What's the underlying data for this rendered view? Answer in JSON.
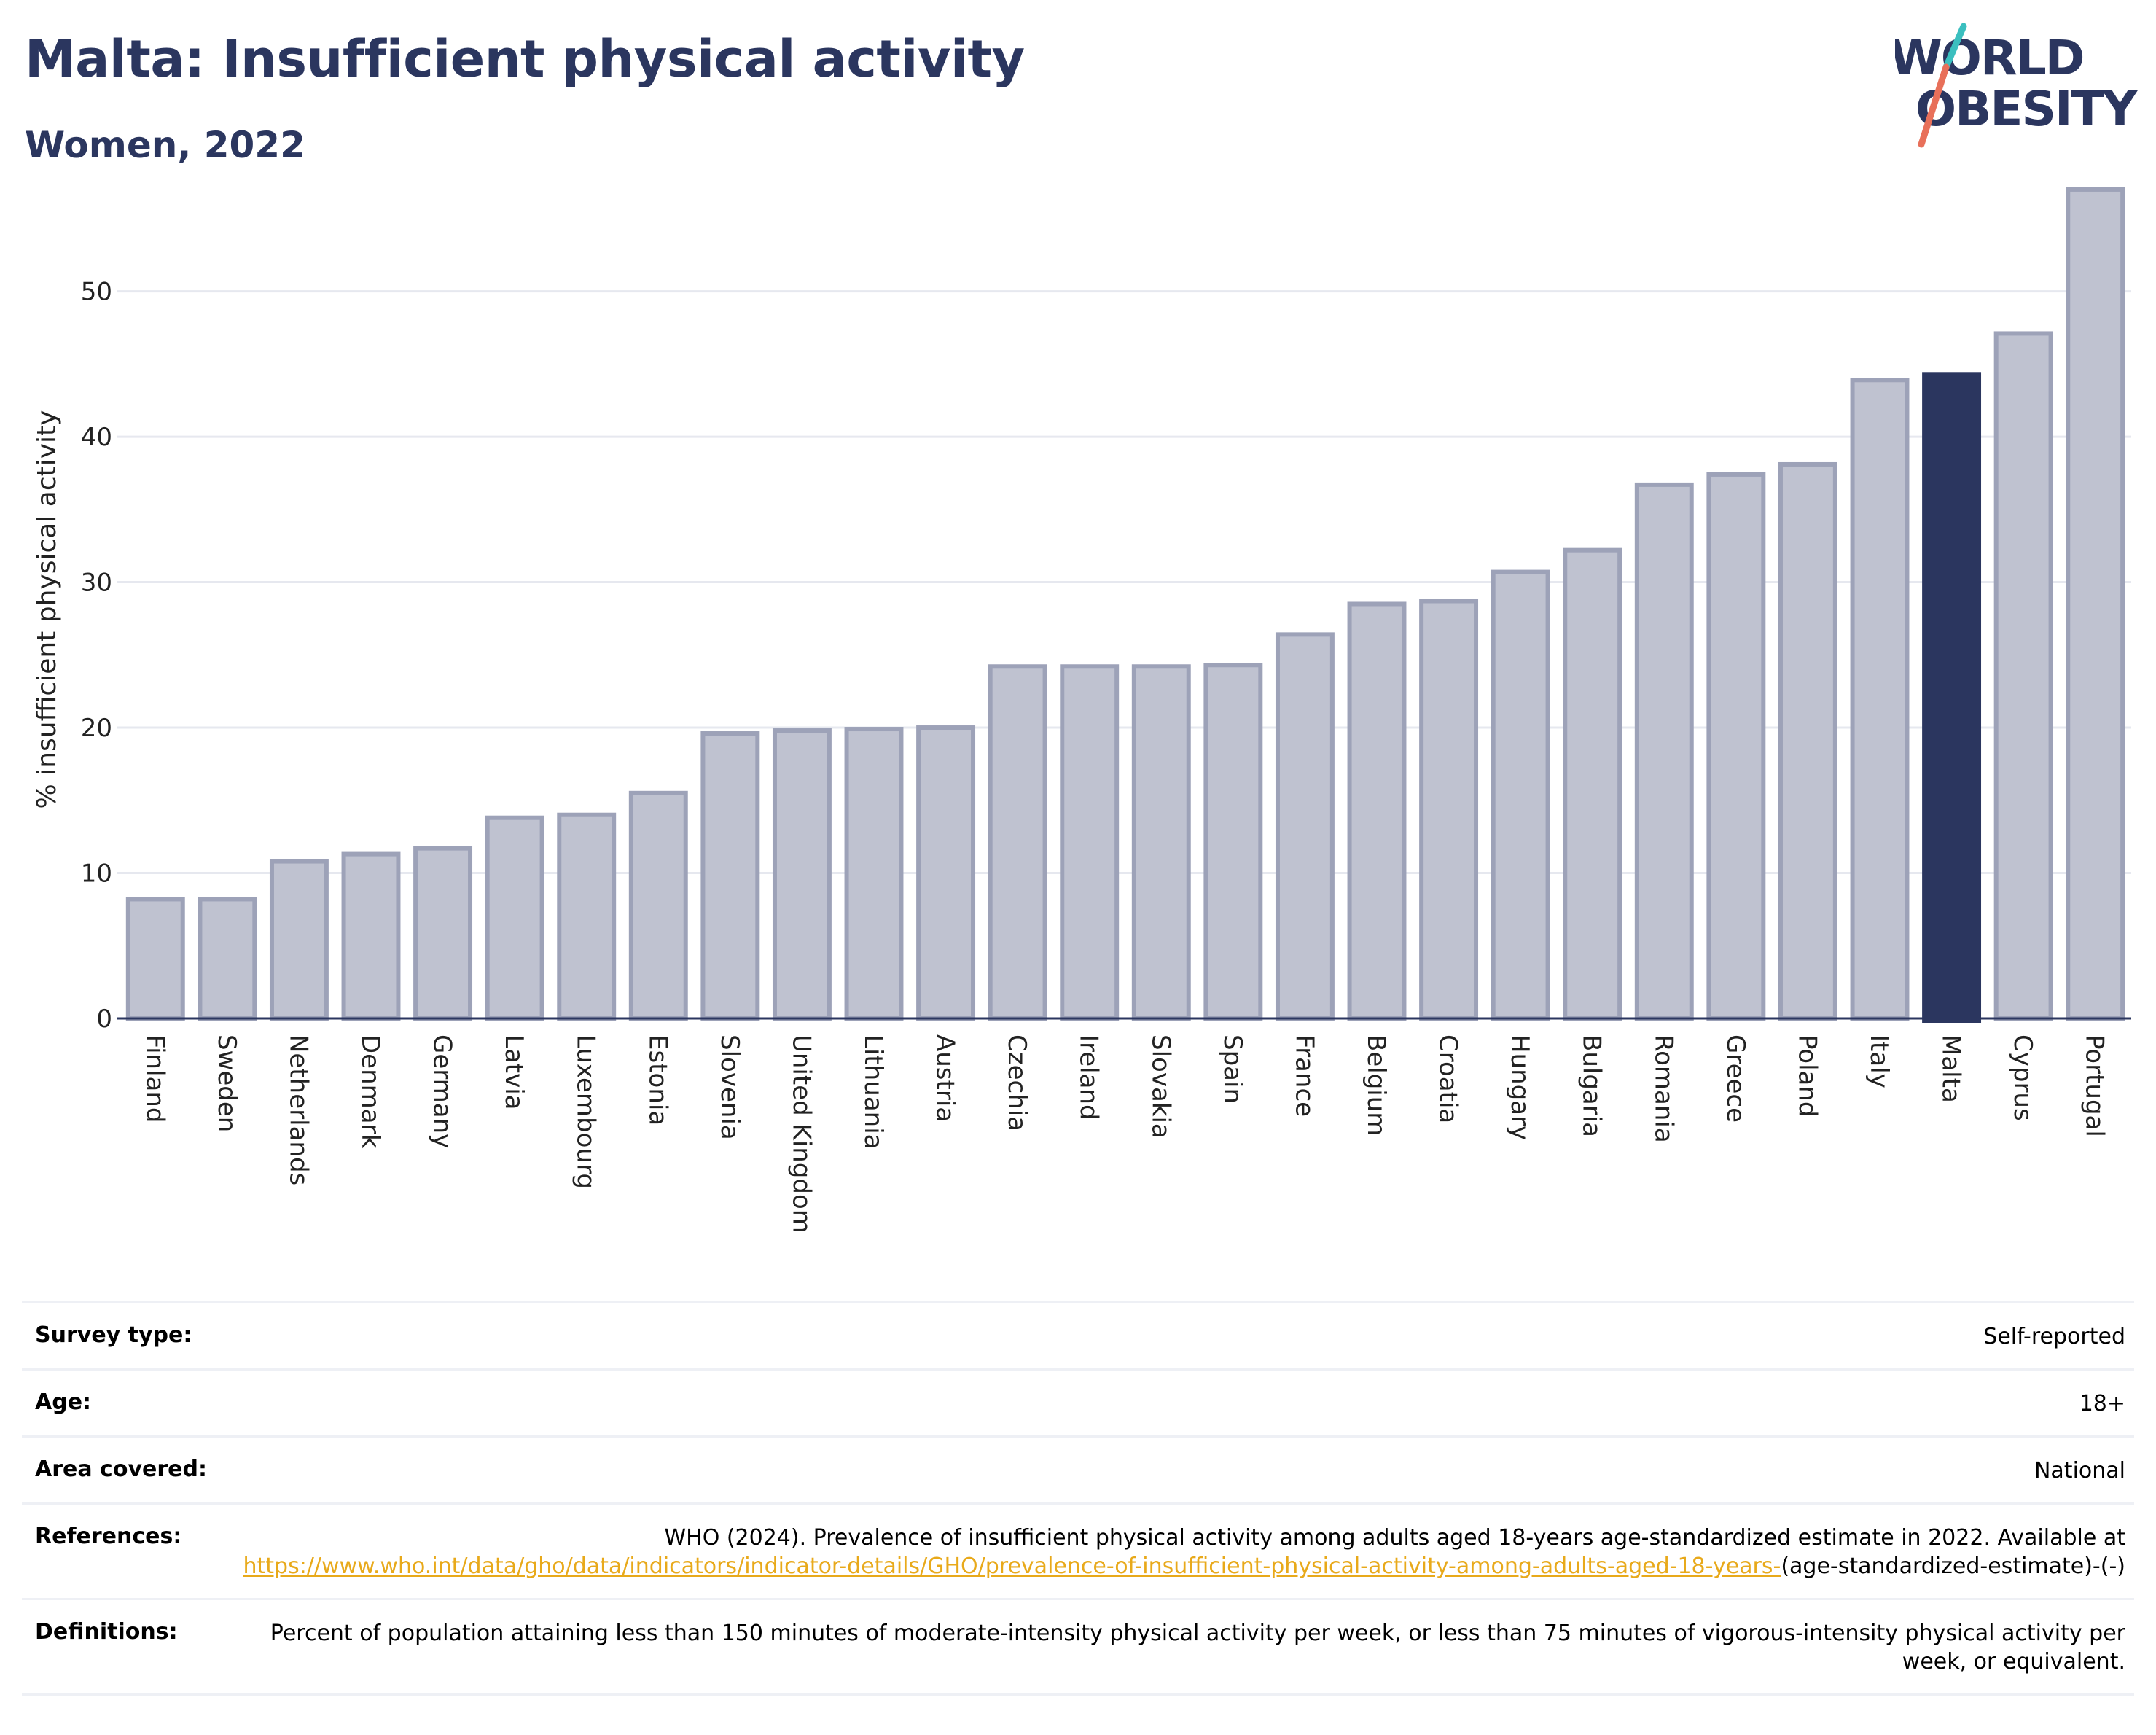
{
  "header": {
    "title": "Malta: Insufficient physical activity",
    "subtitle": "Women, 2022"
  },
  "logo": {
    "line1": "WORLD",
    "line2": "OBESITY",
    "colors": {
      "text": "#2b365f",
      "slash_top": "#3bbfbf",
      "slash_bottom": "#e8705a"
    }
  },
  "chart_data": {
    "type": "bar",
    "title": "Malta: Insufficient physical activity",
    "subtitle": "Women, 2022",
    "ylabel": "% insufficient physical activity",
    "xlabel": "",
    "ylim": [
      0,
      58
    ],
    "yticks": [
      0,
      10,
      20,
      30,
      40,
      50
    ],
    "grid": true,
    "highlight": "Malta",
    "colors": {
      "bar": "#bfc2d0",
      "bar_border": "#9da2b8",
      "highlight": "#2b365f",
      "grid": "#e6e8ef",
      "axis": "#2b365f"
    },
    "categories": [
      "Finland",
      "Sweden",
      "Netherlands",
      "Denmark",
      "Germany",
      "Latvia",
      "Luxembourg",
      "Estonia",
      "Slovenia",
      "United Kingdom",
      "Lithuania",
      "Austria",
      "Czechia",
      "Ireland",
      "Slovakia",
      "Spain",
      "France",
      "Belgium",
      "Croatia",
      "Hungary",
      "Bulgaria",
      "Romania",
      "Greece",
      "Poland",
      "Italy",
      "Malta",
      "Cyprus",
      "Portugal"
    ],
    "values": [
      8.2,
      8.2,
      10.8,
      11.3,
      11.7,
      13.8,
      14.0,
      15.5,
      19.6,
      19.8,
      19.9,
      20.0,
      24.2,
      24.2,
      24.2,
      24.3,
      26.4,
      28.5,
      28.7,
      30.7,
      32.2,
      36.7,
      37.4,
      38.1,
      43.9,
      44.3,
      47.1,
      57.0
    ]
  },
  "info": {
    "survey_type": {
      "label": "Survey type:",
      "value": "Self-reported"
    },
    "age": {
      "label": "Age:",
      "value": "18+"
    },
    "area": {
      "label": "Area covered:",
      "value": "National"
    },
    "references": {
      "label": "References:",
      "text": "WHO (2024). Prevalence of insufficient physical activity among adults aged 18-years age-standardized estimate in 2022. Available at",
      "link": "https://www.who.int/data/gho/data/indicators/indicator-details/GHO/prevalence-of-insufficient-physical-activity-among-adults-aged-18-years-",
      "suffix": "(age-standardized-estimate)-(-)"
    },
    "definitions": {
      "label": "Definitions:",
      "value": "Percent of population attaining less than 150 minutes of moderate-intensity physical activity per week, or less than 75 minutes of vigorous-intensity physical activity per week, or equivalent."
    }
  }
}
